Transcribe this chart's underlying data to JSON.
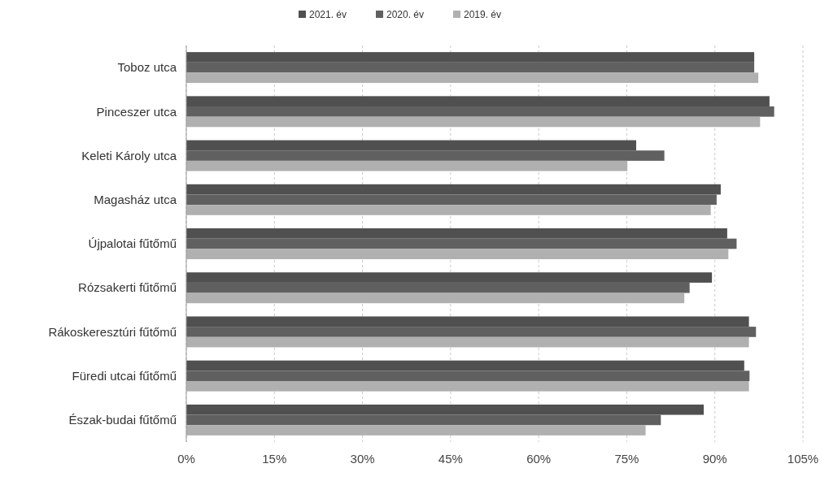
{
  "chart_data": {
    "type": "bar",
    "orientation": "horizontal",
    "categories": [
      "Toboz utca",
      "Pinceszer utca",
      "Keleti Károly utca",
      "Magasház utca",
      "Újpalotai fűtőmű",
      "Rózsakerti fűtőmű",
      "Rákoskeresztúri fűtőmű",
      "Füredi utcai fűtőmű",
      "Észak-budai fűtőmű"
    ],
    "series": [
      {
        "name": "2021. év",
        "color": "#505050",
        "values": [
          96.7,
          99.3,
          76.6,
          91.0,
          92.1,
          89.5,
          95.8,
          95.0,
          88.1
        ]
      },
      {
        "name": "2020. év",
        "color": "#606060",
        "values": [
          96.7,
          100.1,
          81.4,
          90.3,
          93.7,
          85.7,
          97.0,
          95.9,
          80.8
        ]
      },
      {
        "name": "2019. év",
        "color": "#b0b0b0",
        "values": [
          97.4,
          97.7,
          75.1,
          89.3,
          92.3,
          84.8,
          95.8,
          95.8,
          78.2
        ]
      }
    ],
    "xlim": [
      0,
      105
    ],
    "xticks": [
      {
        "value": 0,
        "label": "0%"
      },
      {
        "value": 15,
        "label": "15%"
      },
      {
        "value": 30,
        "label": "30%"
      },
      {
        "value": 45,
        "label": "45%"
      },
      {
        "value": 60,
        "label": "60%"
      },
      {
        "value": 75,
        "label": "75%"
      },
      {
        "value": 90,
        "label": "90%"
      },
      {
        "value": 105,
        "label": "105%"
      }
    ],
    "grid": "x",
    "legend": "top"
  }
}
